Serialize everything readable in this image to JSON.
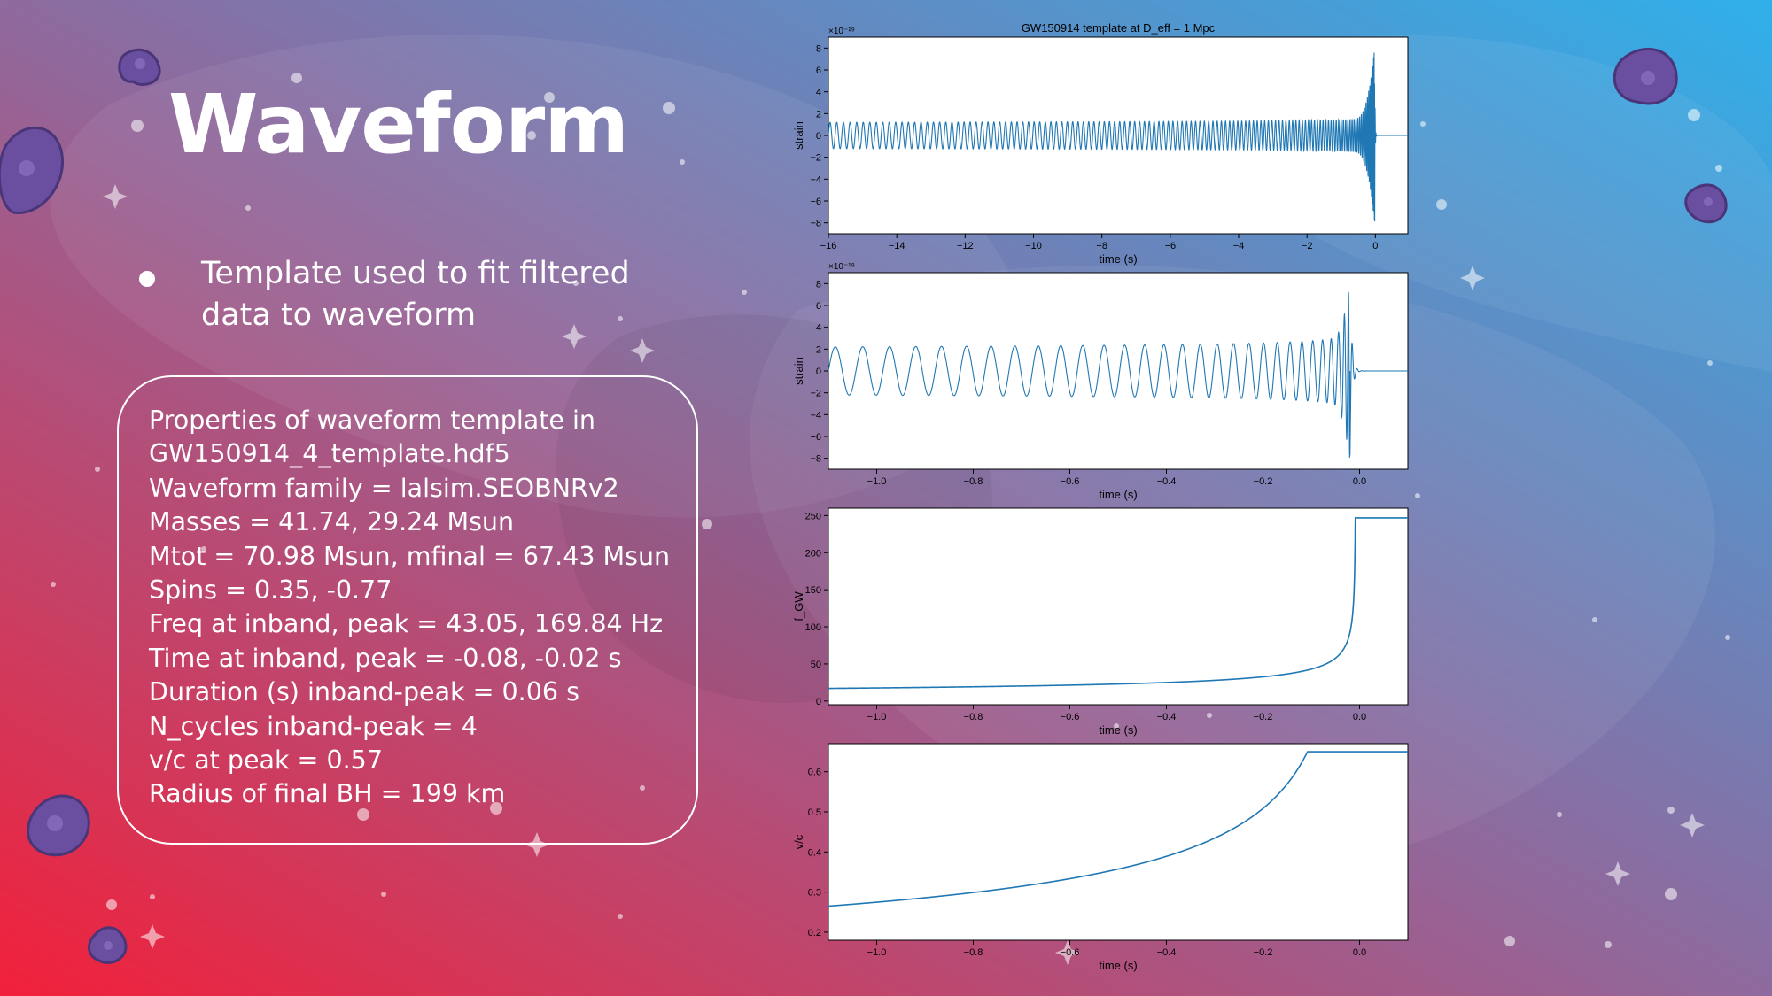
{
  "slide": {
    "title": "Waveform",
    "bullets": [
      "Template used to fit filtered data to waveform"
    ],
    "properties": [
      "Properties of waveform template in",
      "GW150914_4_template.hdf5",
      "Waveform family = lalsim.SEOBNRv2",
      "Masses = 41.74, 29.24 Msun",
      "Mtot = 70.98 Msun, mfinal = 67.43 Msun",
      "Spins = 0.35, -0.77",
      "Freq at inband, peak = 43.05, 169.84 Hz",
      "Time at inband, peak = -0.08, -0.02 s",
      "Duration (s) inband-peak = 0.06 s",
      "N_cycles inband-peak = 4",
      "v/c at peak = 0.57",
      "Radius of final BH = 199 km"
    ]
  },
  "colors": {
    "bg_red": "#f2203a",
    "bg_purple": "#8e6a9e",
    "bg_blue": "#2fb0ea",
    "line": "#1f77b4",
    "asteroid": "#6a4fa0"
  },
  "chart_data": [
    {
      "type": "line",
      "title": "GW150914 template at D_eff = 1 Mpc",
      "xlabel": "time (s)",
      "ylabel": "strain",
      "offset_label": "×10⁻¹⁹",
      "xlim": [
        -16,
        0.95
      ],
      "ylim": [
        -9,
        9
      ],
      "xticks": [
        -16,
        -14,
        -12,
        -10,
        -8,
        -6,
        -4,
        -2,
        0
      ],
      "yticks": [
        -8,
        -6,
        -4,
        -2,
        0,
        2,
        4,
        6,
        8
      ],
      "xtick_labels": [
        "−16",
        "−14",
        "−12",
        "−10",
        "−8",
        "−6",
        "−4",
        "−2",
        "0"
      ],
      "ytick_labels": [
        "−8",
        "−6",
        "−4",
        "−2",
        "0",
        "2",
        "4",
        "6",
        "8"
      ],
      "series": [
        {
          "kind": "chirp",
          "t_merge": -0.02,
          "t_start": -16,
          "amp_early": 1.2,
          "amp_peak": 8.1,
          "amp_min": -8.3,
          "cycles": 130,
          "visual_compress": 0.28,
          "ringdown_tau": 0.01
        }
      ]
    },
    {
      "type": "line",
      "title": "",
      "xlabel": "time (s)",
      "ylabel": "strain",
      "offset_label": "×10⁻¹⁹",
      "xlim": [
        -1.1,
        0.1
      ],
      "ylim": [
        -9,
        9
      ],
      "xticks": [
        -1.0,
        -0.8,
        -0.6,
        -0.4,
        -0.2,
        0.0
      ],
      "yticks": [
        -8,
        -6,
        -4,
        -2,
        0,
        2,
        4,
        6,
        8
      ],
      "xtick_labels": [
        "−1.0",
        "−0.8",
        "−0.6",
        "−0.4",
        "−0.2",
        "0.0"
      ],
      "ytick_labels": [
        "−8",
        "−6",
        "−4",
        "−2",
        "0",
        "2",
        "4",
        "6",
        "8"
      ],
      "series": [
        {
          "kind": "chirp",
          "t_merge": -0.02,
          "t_start": -1.1,
          "amp_early": 2.2,
          "amp_peak": 8.1,
          "amp_min": -8.3,
          "cycles": 30,
          "visual_compress": 0.35,
          "ringdown_tau": 0.004
        }
      ]
    },
    {
      "type": "line",
      "title": "",
      "xlabel": "time (s)",
      "ylabel": "f_GW",
      "offset_label": "",
      "xlim": [
        -1.1,
        0.1
      ],
      "ylim": [
        -5,
        260
      ],
      "xticks": [
        -1.0,
        -0.8,
        -0.6,
        -0.4,
        -0.2,
        0.0
      ],
      "yticks": [
        0,
        50,
        100,
        150,
        200,
        250
      ],
      "xtick_labels": [
        "−1.0",
        "−0.8",
        "−0.6",
        "−0.4",
        "−0.2",
        "0.0"
      ],
      "ytick_labels": [
        "0",
        "50",
        "100",
        "150",
        "200",
        "250"
      ],
      "series": [
        {
          "kind": "freq",
          "start_value": 17,
          "plateau": 247,
          "t_merge": -0.02,
          "t_plateau": -0.005,
          "t_start": -1.1
        }
      ]
    },
    {
      "type": "line",
      "title": "",
      "xlabel": "time (s)",
      "ylabel": "v/c",
      "offset_label": "",
      "xlim": [
        -1.1,
        0.1
      ],
      "ylim": [
        0.18,
        0.67
      ],
      "xticks": [
        -1.0,
        -0.8,
        -0.6,
        -0.4,
        -0.2,
        0.0
      ],
      "yticks": [
        0.2,
        0.3,
        0.4,
        0.5,
        0.6
      ],
      "xtick_labels": [
        "−1.0",
        "−0.8",
        "−0.6",
        "−0.4",
        "−0.2",
        "0.0"
      ],
      "ytick_labels": [
        "0.2",
        "0.3",
        "0.4",
        "0.5",
        "0.6"
      ],
      "series": [
        {
          "kind": "freq",
          "start_value": 0.265,
          "plateau": 0.65,
          "t_merge": -0.02,
          "t_plateau": -0.005,
          "t_start": -1.1
        }
      ]
    }
  ]
}
